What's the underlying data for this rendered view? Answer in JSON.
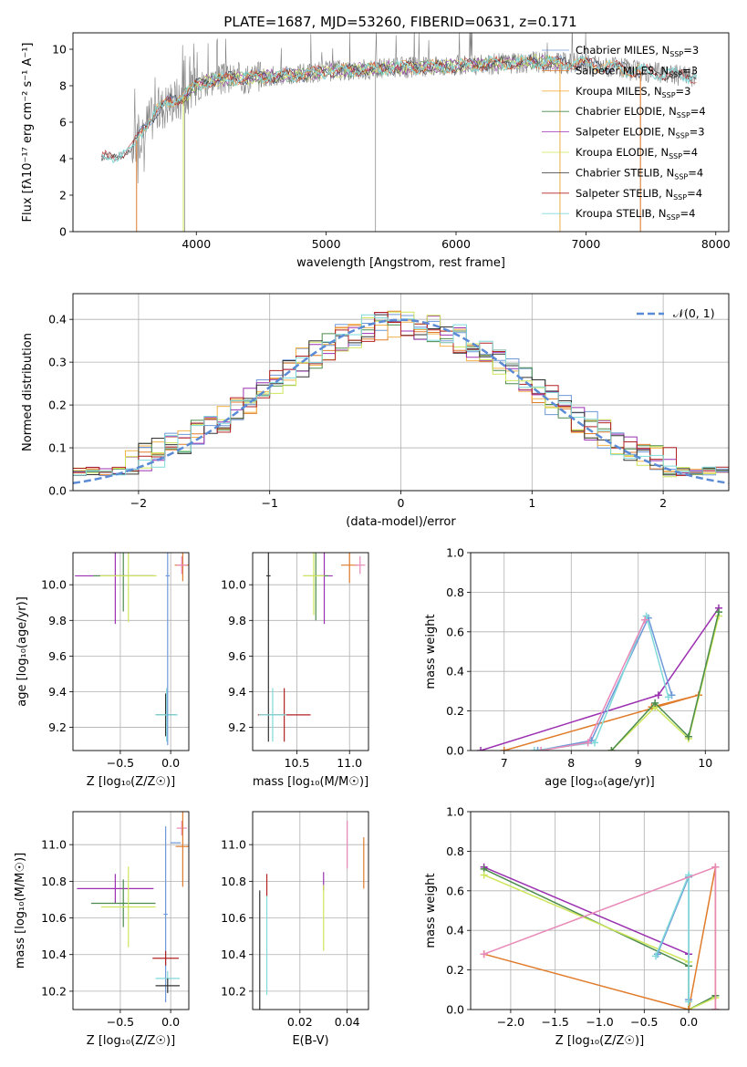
{
  "figure": {
    "title": "PLATE=1687, MJD=53260, FIBERID=0631, z=0.171"
  },
  "palette": {
    "chabrier_miles": "#6f98d8",
    "salpeter_miles": "#e07b2a",
    "kroupa_miles": "#f4b24a",
    "chabrier_elodie": "#4b8b4b",
    "salpeter_elodie": "#9b30b0",
    "kroupa_elodie": "#cde65a",
    "chabrier_stelib": "#333333",
    "salpeter_stelib": "#b22222",
    "kroupa_stelib": "#7fd9d9",
    "pink": "#e889b8",
    "data_gray": "#808080",
    "gauss": "#5b8bd4"
  },
  "chart_data": [
    {
      "id": "spectrum",
      "type": "line",
      "xlabel": "wavelength [Angstrom, rest frame]",
      "ylabel": "Flux [fλ10⁻¹⁷ erg cm⁻² s⁻¹ A⁻¹]",
      "xlim": [
        3050,
        8100
      ],
      "ylim": [
        0,
        10.9
      ],
      "xticks": [
        4000,
        5000,
        6000,
        7000,
        8000
      ],
      "yticks": [
        0,
        2,
        4,
        6,
        8,
        10
      ],
      "legend_position": "top-right",
      "continuum": {
        "x": [
          3270,
          3400,
          3500,
          3600,
          3700,
          3800,
          3900,
          4000,
          4100,
          4300,
          4500,
          4800,
          5000,
          5300,
          5600,
          6000,
          6300,
          6600,
          7000,
          7400,
          7700,
          7850
        ],
        "y": [
          4.0,
          4.2,
          4.5,
          5.8,
          6.6,
          7.2,
          7.4,
          8.0,
          8.3,
          8.4,
          8.5,
          8.6,
          8.8,
          8.9,
          9.0,
          9.1,
          9.2,
          9.3,
          9.2,
          8.8,
          8.6,
          8.5
        ]
      },
      "legend": [
        {
          "label": "Chabrier MILES, N",
          "sub": "SSP",
          "suffix": "=3",
          "color_key": "chabrier_miles"
        },
        {
          "label": "Salpeter MILES, N",
          "sub": "SSP",
          "suffix": "=3",
          "color_key": "salpeter_miles"
        },
        {
          "label": "Kroupa MILES, N",
          "sub": "SSP",
          "suffix": "=3",
          "color_key": "kroupa_miles"
        },
        {
          "label": "Chabrier ELODIE, N",
          "sub": "SSP",
          "suffix": "=4",
          "color_key": "chabrier_elodie"
        },
        {
          "label": "Salpeter ELODIE, N",
          "sub": "SSP",
          "suffix": "=3",
          "color_key": "salpeter_elodie"
        },
        {
          "label": "Kroupa ELODIE, N",
          "sub": "SSP",
          "suffix": "=4",
          "color_key": "kroupa_elodie"
        },
        {
          "label": "Chabrier STELIB, N",
          "sub": "SSP",
          "suffix": "=4",
          "color_key": "chabrier_stelib"
        },
        {
          "label": "Salpeter STELIB, N",
          "sub": "SSP",
          "suffix": "=4",
          "color_key": "salpeter_stelib"
        },
        {
          "label": "Kroupa STELIB, N",
          "sub": "SSP",
          "suffix": "=4",
          "color_key": "kroupa_stelib"
        }
      ]
    },
    {
      "id": "residuals",
      "type": "histogram",
      "xlabel": "(data-model)/error",
      "ylabel": "Normed distribution",
      "xlim": [
        -2.5,
        2.5
      ],
      "ylim": [
        0,
        0.46
      ],
      "xticks": [
        -2,
        -1,
        0,
        1,
        2
      ],
      "xtick_labels": [
        "−2",
        "−1",
        "0",
        "1",
        "2"
      ],
      "yticks": [
        0.0,
        0.1,
        0.2,
        0.3,
        0.4
      ],
      "ytick_labels": [
        "0.0",
        "0.1",
        "0.2",
        "0.3",
        "0.4"
      ],
      "grid": true,
      "legend": [
        {
          "label": "𝒩(0, 1)",
          "color_key": "gauss",
          "style": "dashed"
        }
      ],
      "series_colors": [
        "chabrier_miles",
        "salpeter_miles",
        "kroupa_miles",
        "chabrier_elodie",
        "salpeter_elodie",
        "kroupa_elodie",
        "chabrier_stelib",
        "salpeter_stelib",
        "kroupa_stelib"
      ]
    },
    {
      "id": "z_age",
      "type": "errorbar",
      "xlabel": "Z [log₁₀(Z/Z☉)]",
      "ylabel": "age  [log₁₀(age/yr)]",
      "xlim": [
        -0.97,
        0.18
      ],
      "ylim": [
        9.07,
        10.18
      ],
      "xticks": [
        -0.5,
        0.0
      ],
      "xtick_labels": [
        "−0.5",
        "0.0"
      ],
      "yticks": [
        9.2,
        9.4,
        9.6,
        9.8,
        10.0
      ],
      "yticklabels": [
        "9.2",
        "9.4",
        "9.6",
        "9.8",
        "10.0"
      ],
      "points": [
        {
          "color_key": "salpeter_miles",
          "x": 0.12,
          "xerr": 0.08,
          "y": 10.11,
          "yerr": 0.09
        },
        {
          "color_key": "pink",
          "x": 0.11,
          "xerr": 0.05,
          "y": 10.11,
          "yerr": 0.05
        },
        {
          "color_key": "salpeter_elodie",
          "x": -0.55,
          "xerr": 0.4,
          "y": 10.05,
          "yerr": 0.27
        },
        {
          "color_key": "chabrier_elodie",
          "x": -0.47,
          "xerr": 0.3,
          "y": 10.05,
          "yerr": 0.2
        },
        {
          "color_key": "kroupa_elodie",
          "x": -0.42,
          "xerr": 0.28,
          "y": 10.05,
          "yerr": 0.26
        },
        {
          "color_key": "chabrier_stelib",
          "x": -0.05,
          "xerr": 0.1,
          "y": 9.27,
          "yerr": 0.12
        },
        {
          "color_key": "kroupa_stelib",
          "x": -0.04,
          "xerr": 0.11,
          "y": 9.27,
          "yerr": 0.15
        },
        {
          "color_key": "chabrier_miles",
          "x": -0.03,
          "xerr": 0.02,
          "y": 10.05,
          "yerr": 0.95
        }
      ]
    },
    {
      "id": "mass_age",
      "type": "errorbar",
      "xlabel": "mass [log₁₀(M/M☉)]",
      "ylabel": "",
      "xlim": [
        10.08,
        11.18
      ],
      "ylim": [
        9.07,
        10.18
      ],
      "xticks": [
        10.5,
        11.0
      ],
      "xtick_labels": [
        "10.5",
        "11.0"
      ],
      "yticks": [
        9.2,
        9.4,
        9.6,
        9.8,
        10.0
      ],
      "yticklabels": [
        "9.2",
        "9.4",
        "9.6",
        "9.8",
        "10.0"
      ],
      "points": [
        {
          "color_key": "salpeter_miles",
          "x": 11.0,
          "xerr": 0.08,
          "y": 10.11,
          "yerr": 0.1
        },
        {
          "color_key": "pink",
          "x": 11.1,
          "xerr": 0.05,
          "y": 10.11,
          "yerr": 0.05
        },
        {
          "color_key": "salpeter_elodie",
          "x": 10.76,
          "xerr": 0.08,
          "y": 10.05,
          "yerr": 0.27
        },
        {
          "color_key": "chabrier_elodie",
          "x": 10.68,
          "xerr": 0.12,
          "y": 10.05,
          "yerr": 0.25
        },
        {
          "color_key": "kroupa_elodie",
          "x": 10.66,
          "xerr": 0.1,
          "y": 10.05,
          "yerr": 0.22
        },
        {
          "color_key": "chabrier_stelib",
          "x": 10.23,
          "xerr": 0.02,
          "y": 10.05,
          "yerr": 0.93
        },
        {
          "color_key": "salpeter_stelib",
          "x": 10.38,
          "xerr": 0.25,
          "y": 9.27,
          "yerr": 0.15
        },
        {
          "color_key": "kroupa_stelib",
          "x": 10.27,
          "xerr": 0.13,
          "y": 9.27,
          "yerr": 0.15
        }
      ]
    },
    {
      "id": "age_weight",
      "type": "line",
      "xlabel": "age  [log₁₀(age/yr)]",
      "ylabel": "mass weight",
      "xlim": [
        6.5,
        10.35
      ],
      "ylim": [
        0,
        1
      ],
      "xticks": [
        7,
        8,
        9,
        10
      ],
      "xtick_labels": [
        "7",
        "8",
        "9",
        "10"
      ],
      "yticks": [
        0.0,
        0.2,
        0.4,
        0.6,
        0.8,
        1.0
      ],
      "ytick_labels": [
        "0.0",
        "0.2",
        "0.4",
        "0.6",
        "0.8",
        "1.0"
      ],
      "grid": true,
      "series": [
        {
          "color_key": "salpeter_elodie",
          "x": [
            6.65,
            9.3,
            10.2
          ],
          "y": [
            0.0,
            0.28,
            0.72
          ]
        },
        {
          "color_key": "salpeter_miles",
          "x": [
            7.0,
            9.9,
            9.2
          ],
          "y": [
            0.0,
            0.28,
            0.22
          ]
        },
        {
          "color_key": "kroupa_elodie",
          "x": [
            8.6,
            9.25,
            9.75,
            10.2
          ],
          "y": [
            0.0,
            0.22,
            0.06,
            0.68
          ]
        },
        {
          "color_key": "chabrier_elodie",
          "x": [
            8.6,
            9.25,
            9.75,
            10.2
          ],
          "y": [
            0.0,
            0.24,
            0.07,
            0.7
          ]
        },
        {
          "color_key": "chabrier_miles",
          "x": [
            7.5,
            8.3,
            9.15,
            9.5
          ],
          "y": [
            0.0,
            0.05,
            0.67,
            0.28
          ]
        },
        {
          "color_key": "kroupa_stelib",
          "x": [
            7.45,
            8.35,
            9.12,
            9.45
          ],
          "y": [
            0.0,
            0.04,
            0.68,
            0.27
          ]
        },
        {
          "color_key": "pink",
          "x": [
            7.55,
            8.25,
            9.1
          ],
          "y": [
            0.0,
            0.04,
            0.66
          ]
        }
      ]
    },
    {
      "id": "z_mass",
      "type": "errorbar",
      "xlabel": "Z [log₁₀(Z/Z☉)]",
      "ylabel": "mass [log₁₀(M/M☉)]",
      "xlim": [
        -0.97,
        0.18
      ],
      "ylim": [
        10.1,
        11.18
      ],
      "xticks": [
        -0.5,
        0.0
      ],
      "xtick_labels": [
        "−0.5",
        "0.0"
      ],
      "yticks": [
        10.2,
        10.4,
        10.6,
        10.8,
        11.0
      ],
      "yticklabels": [
        "10.2",
        "10.4",
        "10.6",
        "10.8",
        "11.0"
      ],
      "points": [
        {
          "color_key": "pink",
          "x": 0.11,
          "xerr": 0.05,
          "y": 11.09,
          "yerr": 0.04
        },
        {
          "color_key": "chabrier_miles",
          "x": 0.05,
          "xerr": 0.05,
          "y": 11.01,
          "yerr": 0.0
        },
        {
          "color_key": "salpeter_miles",
          "x": 0.12,
          "xerr": 0.07,
          "y": 10.99,
          "yerr": 0.22
        },
        {
          "color_key": "salpeter_elodie",
          "x": -0.55,
          "xerr": 0.38,
          "y": 10.76,
          "yerr": 0.08
        },
        {
          "color_key": "chabrier_elodie",
          "x": -0.47,
          "xerr": 0.32,
          "y": 10.68,
          "yerr": 0.13
        },
        {
          "color_key": "kroupa_elodie",
          "x": -0.42,
          "xerr": 0.27,
          "y": 10.66,
          "yerr": 0.22
        },
        {
          "color_key": "chabrier_miles",
          "x": -0.05,
          "xerr": 0.02,
          "y": 10.62,
          "yerr": 0.48
        },
        {
          "color_key": "salpeter_stelib",
          "x": -0.05,
          "xerr": 0.13,
          "y": 10.38,
          "yerr": 0.04
        },
        {
          "color_key": "kroupa_stelib",
          "x": -0.03,
          "xerr": 0.12,
          "y": 10.27,
          "yerr": 0.04
        },
        {
          "color_key": "chabrier_stelib",
          "x": -0.03,
          "xerr": 0.12,
          "y": 10.23,
          "yerr": 0.04
        }
      ]
    },
    {
      "id": "ebv_mass",
      "type": "errorbar",
      "xlabel": "E(B-V)",
      "ylabel": "",
      "xlim": [
        0.0,
        0.049
      ],
      "ylim": [
        10.1,
        11.18
      ],
      "xticks": [
        0.02,
        0.04
      ],
      "xtick_labels": [
        "0.02",
        "0.04"
      ],
      "yticks": [
        10.2,
        10.4,
        10.6,
        10.8,
        11.0
      ],
      "yticklabels": [
        "10.2",
        "10.4",
        "10.6",
        "10.8",
        "11.0"
      ],
      "points": [
        {
          "color_key": "salpeter_miles",
          "x": 0.047,
          "xerr": 0.0,
          "y": 10.9,
          "yerr": 0.14
        },
        {
          "color_key": "pink",
          "x": 0.04,
          "xerr": 0.0,
          "y": 11.0,
          "yerr": 0.13
        },
        {
          "color_key": "salpeter_elodie",
          "x": 0.03,
          "xerr": 0.0,
          "y": 10.8,
          "yerr": 0.05
        },
        {
          "color_key": "kroupa_elodie",
          "x": 0.03,
          "xerr": 0.0,
          "y": 10.6,
          "yerr": 0.18
        },
        {
          "color_key": "chabrier_stelib",
          "x": 0.003,
          "xerr": 0.0,
          "y": 10.42,
          "yerr": 0.33
        },
        {
          "color_key": "salpeter_stelib",
          "x": 0.006,
          "xerr": 0.0,
          "y": 10.78,
          "yerr": 0.06
        },
        {
          "color_key": "kroupa_stelib",
          "x": 0.006,
          "xerr": 0.0,
          "y": 10.45,
          "yerr": 0.27
        }
      ]
    },
    {
      "id": "z_weight",
      "type": "line",
      "xlabel": "Z [log₁₀(Z/Z☉)]",
      "ylabel": "mass weight",
      "xlim": [
        -2.45,
        0.45
      ],
      "ylim": [
        0,
        1
      ],
      "xticks": [
        -2.0,
        -1.5,
        -1.0,
        -0.5,
        0.0
      ],
      "xtick_labels": [
        "−2.0",
        "−1.5",
        "−1.0",
        "−0.5",
        "0.0"
      ],
      "yticks": [
        0.0,
        0.2,
        0.4,
        0.6,
        0.8,
        1.0
      ],
      "ytick_labels": [
        "0.0",
        "0.2",
        "0.4",
        "0.6",
        "0.8",
        "1.0"
      ],
      "grid": true,
      "series": [
        {
          "color_key": "salpeter_elodie",
          "x": [
            -2.3,
            0.0
          ],
          "y": [
            0.72,
            0.28
          ]
        },
        {
          "color_key": "chabrier_elodie",
          "x": [
            -2.3,
            0.0,
            0.0,
            0.3
          ],
          "y": [
            0.71,
            0.22,
            0.0,
            0.07
          ]
        },
        {
          "color_key": "kroupa_elodie",
          "x": [
            -2.3,
            0.0,
            0.0,
            0.3
          ],
          "y": [
            0.68,
            0.24,
            0.0,
            0.06
          ]
        },
        {
          "color_key": "salpeter_miles",
          "x": [
            -2.3,
            0.0,
            0.3,
            0.3
          ],
          "y": [
            0.28,
            0.0,
            0.72,
            0.0
          ]
        },
        {
          "color_key": "chabrier_miles",
          "x": [
            -0.35,
            0.0,
            0.0
          ],
          "y": [
            0.28,
            0.67,
            0.05
          ]
        },
        {
          "color_key": "kroupa_stelib",
          "x": [
            -0.37,
            0.0,
            0.0
          ],
          "y": [
            0.27,
            0.68,
            0.04
          ]
        },
        {
          "color_key": "pink",
          "x": [
            -2.3,
            0.3,
            0.3
          ],
          "y": [
            0.28,
            0.72,
            0.0
          ]
        }
      ]
    }
  ]
}
